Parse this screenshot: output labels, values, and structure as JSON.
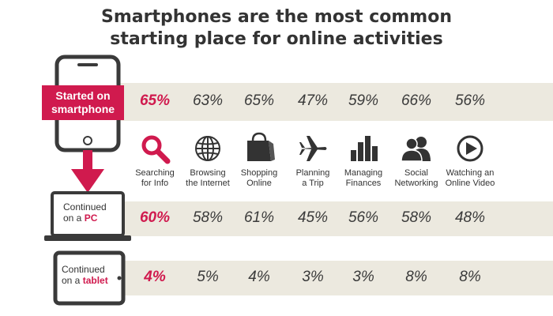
{
  "title_line1": "Smartphones are the most common",
  "title_line2": "starting place for online activities",
  "colors": {
    "accent": "#d01a4e",
    "band": "#ece9df",
    "text": "#333333"
  },
  "icons": [
    "search-icon",
    "globe-icon",
    "shopping-bag-icon",
    "airplane-icon",
    "bar-chart-icon",
    "people-icon",
    "play-icon"
  ],
  "devices": {
    "smartphone": {
      "label_line1": "Started on",
      "label_line2": "smartphone"
    },
    "pc": {
      "line1": "Continued",
      "line2_prefix": "on a ",
      "line2_accent": "PC"
    },
    "tablet": {
      "line1": "Continued",
      "line2_prefix": "on a ",
      "line2_accent": "tablet"
    }
  },
  "chart_data": {
    "type": "table",
    "categories": [
      [
        "Searching",
        "for Info"
      ],
      [
        "Browsing",
        "the Internet"
      ],
      [
        "Shopping",
        "Online"
      ],
      [
        "Planning",
        "a Trip"
      ],
      [
        "Managing",
        "Finances"
      ],
      [
        "Social",
        "Networking"
      ],
      [
        "Watching an",
        "Online Video"
      ]
    ],
    "series": [
      {
        "name": "Started on smartphone",
        "values": [
          "65%",
          "63%",
          "65%",
          "47%",
          "59%",
          "66%",
          "56%"
        ]
      },
      {
        "name": "Continued on a PC",
        "values": [
          "60%",
          "58%",
          "61%",
          "45%",
          "56%",
          "58%",
          "48%"
        ]
      },
      {
        "name": "Continued on a tablet",
        "values": [
          "4%",
          "5%",
          "4%",
          "3%",
          "3%",
          "8%",
          "8%"
        ]
      }
    ]
  }
}
